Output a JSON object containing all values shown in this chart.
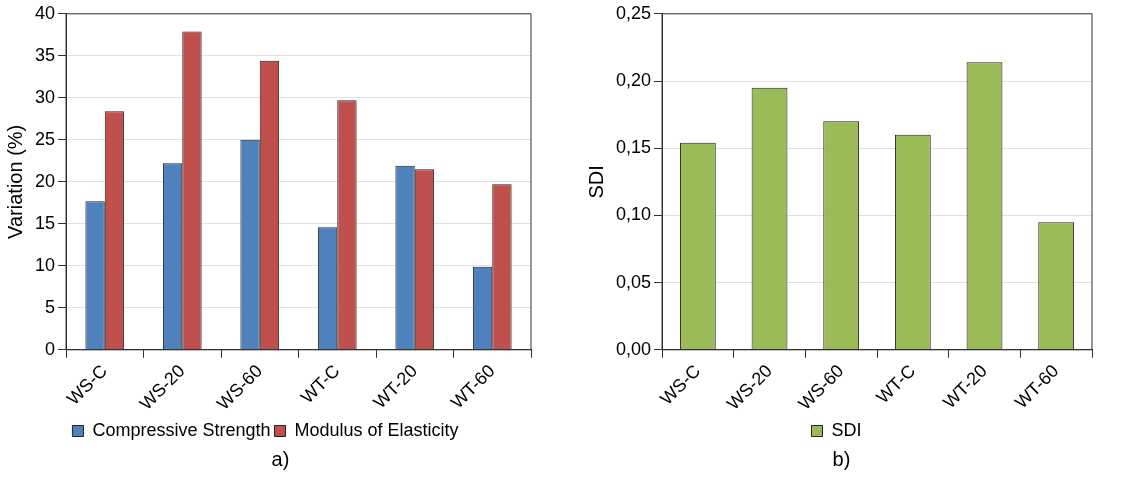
{
  "chart_data": [
    {
      "type": "bar",
      "ylabel": "Variation (%)",
      "categories": [
        "WS-C",
        "WS-20",
        "WS-60",
        "WT-C",
        "WT-20",
        "WT-60"
      ],
      "series": [
        {
          "name": "Compressive Strength",
          "color": "#4f81bd",
          "values": [
            17.7,
            22.2,
            25.0,
            14.6,
            21.9,
            9.9
          ]
        },
        {
          "name": "Modulus of Elasticity",
          "color": "#c0504d",
          "values": [
            28.4,
            37.9,
            34.4,
            29.7,
            21.5,
            19.7
          ]
        }
      ],
      "ylim": [
        0,
        40
      ],
      "yticks": [
        0,
        5,
        10,
        15,
        20,
        25,
        30,
        35,
        40
      ],
      "grid": "y",
      "legend": "bottom",
      "annotations": [
        "a)"
      ]
    },
    {
      "type": "bar",
      "ylabel": "SDI",
      "categories": [
        "WS-C",
        "WS-20",
        "WS-60",
        "WT-C",
        "WT-20",
        "WT-60"
      ],
      "series": [
        {
          "name": "SDI",
          "color": "#9bbb59",
          "values": [
            0.154,
            0.195,
            0.17,
            0.16,
            0.214,
            0.095
          ]
        }
      ],
      "ylim": [
        0,
        0.25
      ],
      "yticks": [
        {
          "value": 0,
          "label": "0,00"
        },
        {
          "value": 0.05,
          "label": "0,05"
        },
        {
          "value": 0.1,
          "label": "0,10"
        },
        {
          "value": 0.15,
          "label": "0,15"
        },
        {
          "value": 0.2,
          "label": "0,20"
        },
        {
          "value": 0.25,
          "label": "0,25"
        }
      ],
      "grid": "y",
      "legend": "bottom",
      "annotations": [
        "b)"
      ]
    }
  ]
}
